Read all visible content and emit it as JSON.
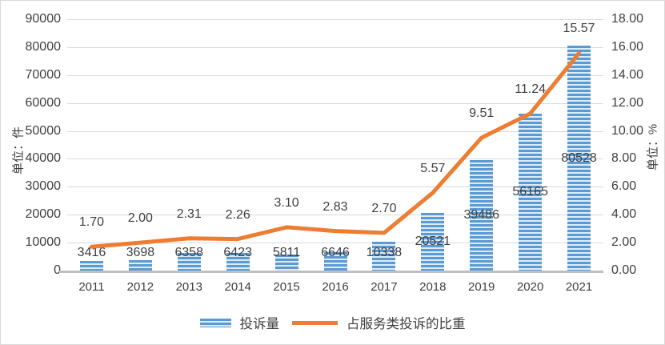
{
  "chart_data": {
    "type": "combo-bar-line",
    "categories": [
      "2011",
      "2012",
      "2013",
      "2014",
      "2015",
      "2016",
      "2017",
      "2018",
      "2019",
      "2020",
      "2021"
    ],
    "series": [
      {
        "name": "投诉量",
        "type": "bar",
        "axis": "left",
        "values": [
          3416,
          3698,
          6358,
          6423,
          5811,
          6646,
          10338,
          20521,
          39486,
          56165,
          80528
        ],
        "labels": [
          "3416",
          "3698",
          "6358",
          "6423",
          "5811",
          "6646",
          "10338",
          "20521",
          "39486",
          "56165",
          "80528"
        ],
        "color": "#5B9BD5",
        "stripe_light": "#DDEBF7"
      },
      {
        "name": "占服务类投诉的比重",
        "type": "line",
        "axis": "right",
        "values": [
          1.7,
          2.0,
          2.31,
          2.26,
          3.1,
          2.83,
          2.7,
          5.57,
          9.51,
          11.24,
          15.57
        ],
        "labels": [
          "1.70",
          "2.00",
          "2.31",
          "2.26",
          "3.10",
          "2.83",
          "2.70",
          "5.57",
          "9.51",
          "11.24",
          "15.57"
        ],
        "color": "#ED7D31"
      }
    ],
    "left_axis": {
      "title": "单位：件",
      "min": 0,
      "max": 90000,
      "step": 10000,
      "ticks": [
        "90000",
        "80000",
        "70000",
        "60000",
        "50000",
        "40000",
        "30000",
        "20000",
        "10000",
        "0"
      ]
    },
    "right_axis": {
      "title": "单位：%",
      "min": 0,
      "max": 18,
      "step": 2,
      "ticks": [
        "18.00",
        "16.00",
        "14.00",
        "12.00",
        "10.00",
        "8.00",
        "6.00",
        "4.00",
        "2.00",
        "0.00"
      ]
    },
    "grid": true,
    "legend_position": "bottom",
    "title": ""
  },
  "colors": {
    "grid": "#D9D9D9",
    "axis_line": "#BFBFBF",
    "text": "#3F3F3F",
    "background": "#FFFFFF",
    "border": "#D9D9D9",
    "bar": "#5B9BD5",
    "line": "#ED7D31"
  }
}
